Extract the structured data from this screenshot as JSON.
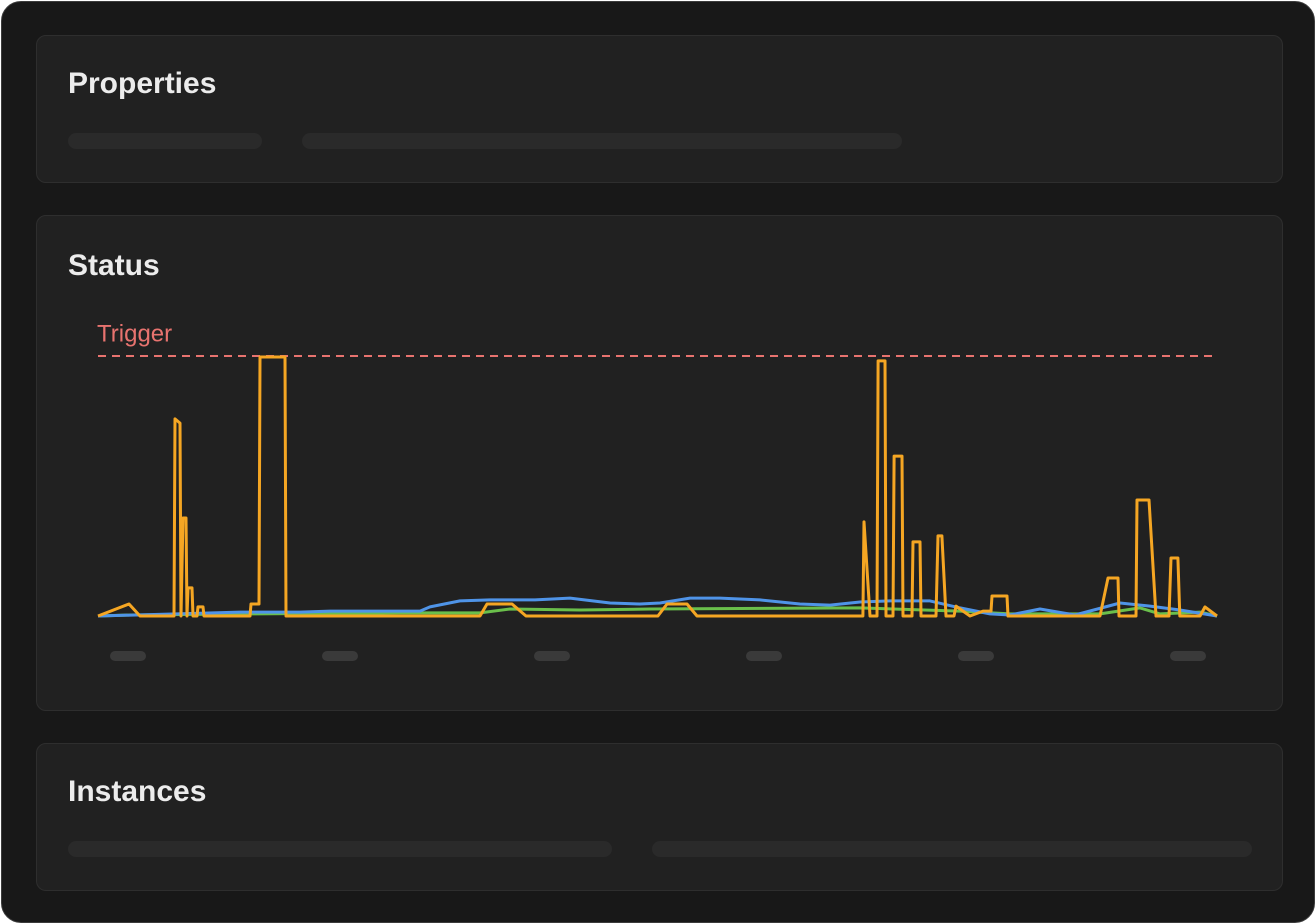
{
  "properties": {
    "title": "Properties"
  },
  "status": {
    "title": "Status",
    "chart_data": {
      "type": "line",
      "xlim": [
        0,
        1000
      ],
      "ylim": [
        0,
        100
      ],
      "threshold": {
        "value": 100,
        "label": "Trigger",
        "color": "#e8736f"
      },
      "series": [
        {
          "color": "#6abf4b",
          "x": [
            0,
            28.6,
            135.8,
            269.9,
            341.4,
            368.2,
            430.7,
            493.3,
            681.0,
            770.3,
            815.0,
            895.4,
            931.2,
            949.1,
            984.8,
            1000
          ],
          "values": [
            0,
            0.4,
            0.8,
            1.2,
            1.2,
            2.7,
            2.3,
            2.7,
            3.1,
            1.9,
            0.8,
            0.8,
            3.1,
            0.8,
            1.5,
            0
          ]
        },
        {
          "color": "#4f94e8",
          "x": [
            0,
            126.9,
            180.5,
            207.3,
            287.8,
            296.7,
            323.5,
            350.3,
            390.5,
            421.8,
            457.6,
            484.4,
            502.2,
            529.0,
            555.8,
            591.6,
            627.3,
            654.2,
            681.0,
            707.8,
            743.5,
            770.3,
            797.1,
            815.0,
            841.8,
            873.1,
            913.3,
            940.1,
            966.9,
            1000
          ],
          "values": [
            0,
            1.5,
            1.5,
            1.9,
            1.9,
            3.5,
            5.8,
            6.2,
            6.2,
            6.9,
            5.0,
            4.6,
            5.0,
            6.9,
            6.9,
            6.2,
            4.6,
            4.2,
            5.4,
            5.8,
            5.8,
            3.1,
            0.8,
            0.4,
            2.7,
            0.4,
            5.0,
            3.8,
            2.3,
            0
          ]
        },
        {
          "color": "#f5a623",
          "x": [
            0,
            27.7,
            37.5,
            67.9,
            68.8,
            73.3,
            74.2,
            76.0,
            78.6,
            79.5,
            80.4,
            84.0,
            84.9,
            88.5,
            89.4,
            93.8,
            94.7,
            135.8,
            136.7,
            143.9,
            144.8,
            167.1,
            168.0,
            341.4,
            347.6,
            370.0,
            382.5,
            500.4,
            508.5,
            526.4,
            535.3,
            683.6,
            684.5,
            689.9,
            696.2,
            697.1,
            703.3,
            704.2,
            710.5,
            711.4,
            718.5,
            719.4,
            727.4,
            728.3,
            734.6,
            735.5,
            748.9,
            750.7,
            754.2,
            757.8,
            765.0,
            766.8,
            779.3,
            790.9,
            798.0,
            798.9,
            812.3,
            813.2,
            895.4,
            902.6,
            911.5,
            912.4,
            927.6,
            928.5,
            939.2,
            945.5,
            957.1,
            958.9,
            965.1,
            966.8,
            984.8,
            989.3,
            1000
          ],
          "values": [
            0,
            4.6,
            0,
            0,
            75.8,
            74.2,
            0,
            37.7,
            37.7,
            0,
            10.8,
            10.8,
            0,
            0,
            3.5,
            3.5,
            0,
            0,
            4.6,
            4.6,
            99.6,
            99.6,
            0,
            0,
            4.6,
            4.6,
            0,
            0,
            4.6,
            4.6,
            0,
            0,
            36.2,
            0,
            0,
            98.1,
            98.1,
            0,
            0,
            61.5,
            61.5,
            0,
            0,
            28.5,
            28.5,
            0,
            0,
            30.8,
            30.8,
            0,
            0,
            3.8,
            0,
            1.9,
            1.9,
            7.7,
            7.7,
            0,
            0,
            14.6,
            14.6,
            0,
            0,
            44.6,
            44.6,
            0,
            0,
            22.3,
            22.3,
            0,
            0,
            3.5,
            0
          ]
        }
      ]
    }
  },
  "instances": {
    "title": "Instances"
  }
}
